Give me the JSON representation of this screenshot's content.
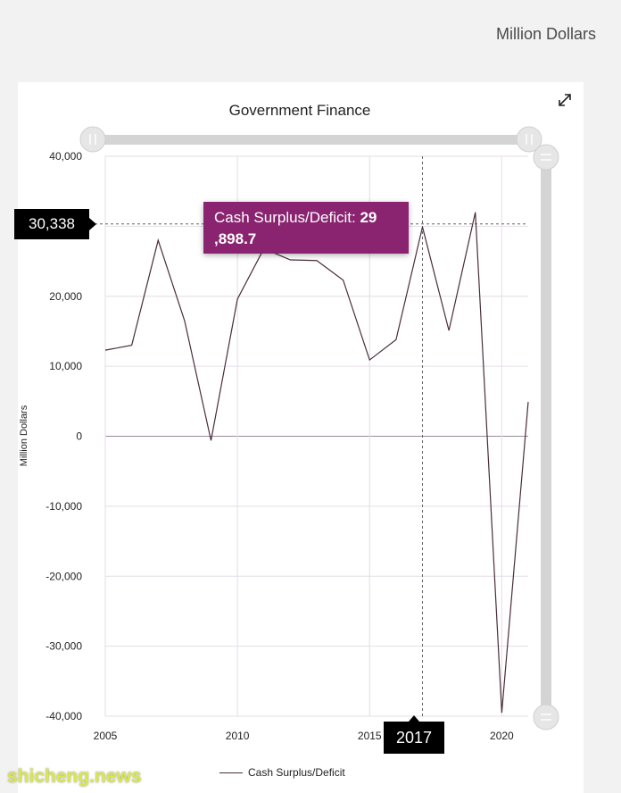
{
  "header": {
    "unit_label": "Million Dollars"
  },
  "chart_data": {
    "type": "line",
    "title": "Government Finance",
    "ylabel": "Million Dollars",
    "xlabel": "",
    "ylim": [
      -40000,
      40000
    ],
    "xlim": [
      2005,
      2021
    ],
    "y_ticks": [
      40000,
      30000,
      20000,
      10000,
      0,
      -10000,
      -20000,
      -30000,
      -40000
    ],
    "y_tick_labels": [
      "40,000",
      "",
      "20,000",
      "10,000",
      "0",
      "-10,000",
      "-20,000",
      "-30,000",
      "-40,000"
    ],
    "x_ticks": [
      2005,
      2010,
      2015,
      2020
    ],
    "x_tick_labels": [
      "2005",
      "2010",
      "2015",
      "2020"
    ],
    "grid": true,
    "legend_position": "bottom",
    "series": [
      {
        "name": "Cash Surplus/Deficit",
        "color": "#4a2d3a",
        "x": [
          2005,
          2006,
          2007,
          2008,
          2009,
          2010,
          2011,
          2012,
          2013,
          2014,
          2015,
          2016,
          2017,
          2018,
          2019,
          2020,
          2021
        ],
        "values": [
          12300,
          13000,
          28000,
          16500,
          -600,
          19600,
          26800,
          25200,
          25100,
          22300,
          10900,
          13800,
          29898.7,
          15100,
          32000,
          -39500,
          4900
        ]
      }
    ]
  },
  "hover": {
    "x_value": "2017",
    "y_value": "30,338",
    "tooltip_series": "Cash Surplus/Deficit: ",
    "tooltip_value_line1": "29",
    "tooltip_value_line2": ",898.7"
  },
  "watermark": "shicheng.news"
}
